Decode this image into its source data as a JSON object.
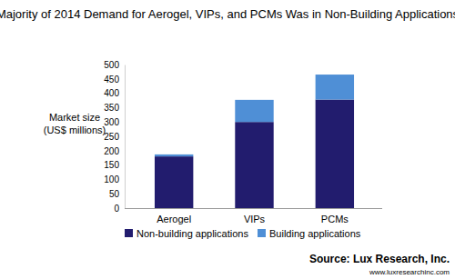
{
  "chart_data": {
    "type": "bar",
    "title": "Majority of 2014 Demand for Aerogel, VIPs, and PCMs Was in Non-Building Applications",
    "y_label": [
      "Market size",
      "(US$ millions)"
    ],
    "categories": [
      "Aerogel",
      "VIPs",
      "PCMs"
    ],
    "series": [
      {
        "name": "Non-building applications",
        "color": "#221c6e",
        "values": [
          180,
          300,
          378
        ]
      },
      {
        "name": "Building applications",
        "color": "#4f8fd6",
        "values": [
          7,
          77,
          87
        ]
      }
    ],
    "stacked": true,
    "ylim": [
      0,
      500
    ],
    "yticks": [
      0,
      50,
      100,
      150,
      200,
      250,
      300,
      350,
      400,
      450,
      500
    ],
    "grid": false,
    "legend": "bottom",
    "annotations": [
      "Source: Lux Research, Inc.",
      "www.luxresearchinc.com"
    ]
  }
}
